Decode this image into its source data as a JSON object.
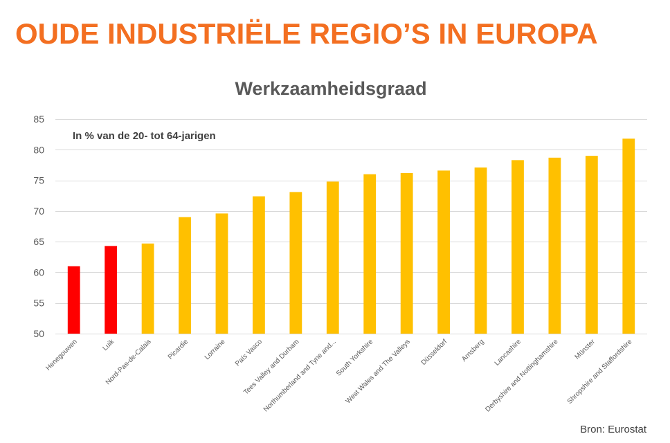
{
  "header": {
    "title": "OUDE INDUSTRIËLE REGIO’S IN EUROPA"
  },
  "colors": {
    "title": "#F36F21",
    "highlight_bar": "#FF0000",
    "bar": "#FFC000",
    "grid": "#D9D9D9",
    "text": "#595959"
  },
  "chart_data": {
    "type": "bar",
    "title": "Werkzaamheidsgraad",
    "annotation": "In % van de 20- tot 64-jarigen",
    "xlabel": "",
    "ylabel": "",
    "ylim": [
      50,
      85
    ],
    "yticks": [
      50,
      55,
      60,
      65,
      70,
      75,
      80,
      85
    ],
    "grid": true,
    "legend": "none",
    "categories": [
      "Henegouwen",
      "Luik",
      "Nord-Pas-de-Calais",
      "Picardie",
      "Lorraine",
      "País Vasco",
      "Tees Valley and Durham",
      "Northumberland and Tyne and...",
      "South Yorkshire",
      "West Wales and The Valleys",
      "Düsseldorf",
      "Arnsberg",
      "Lancashire",
      "Derbyshire and Nottinghamshire",
      "Münster",
      "Shropshire and Staffordshire"
    ],
    "values": [
      61.0,
      64.3,
      64.7,
      69.0,
      69.6,
      72.4,
      73.1,
      74.8,
      76.0,
      76.2,
      76.6,
      77.1,
      78.3,
      78.7,
      79.0,
      81.8
    ],
    "bar_colors": [
      "#FF0000",
      "#FF0000",
      "#FFC000",
      "#FFC000",
      "#FFC000",
      "#FFC000",
      "#FFC000",
      "#FFC000",
      "#FFC000",
      "#FFC000",
      "#FFC000",
      "#FFC000",
      "#FFC000",
      "#FFC000",
      "#FFC000",
      "#FFC000"
    ]
  },
  "source": "Bron: Eurostat"
}
